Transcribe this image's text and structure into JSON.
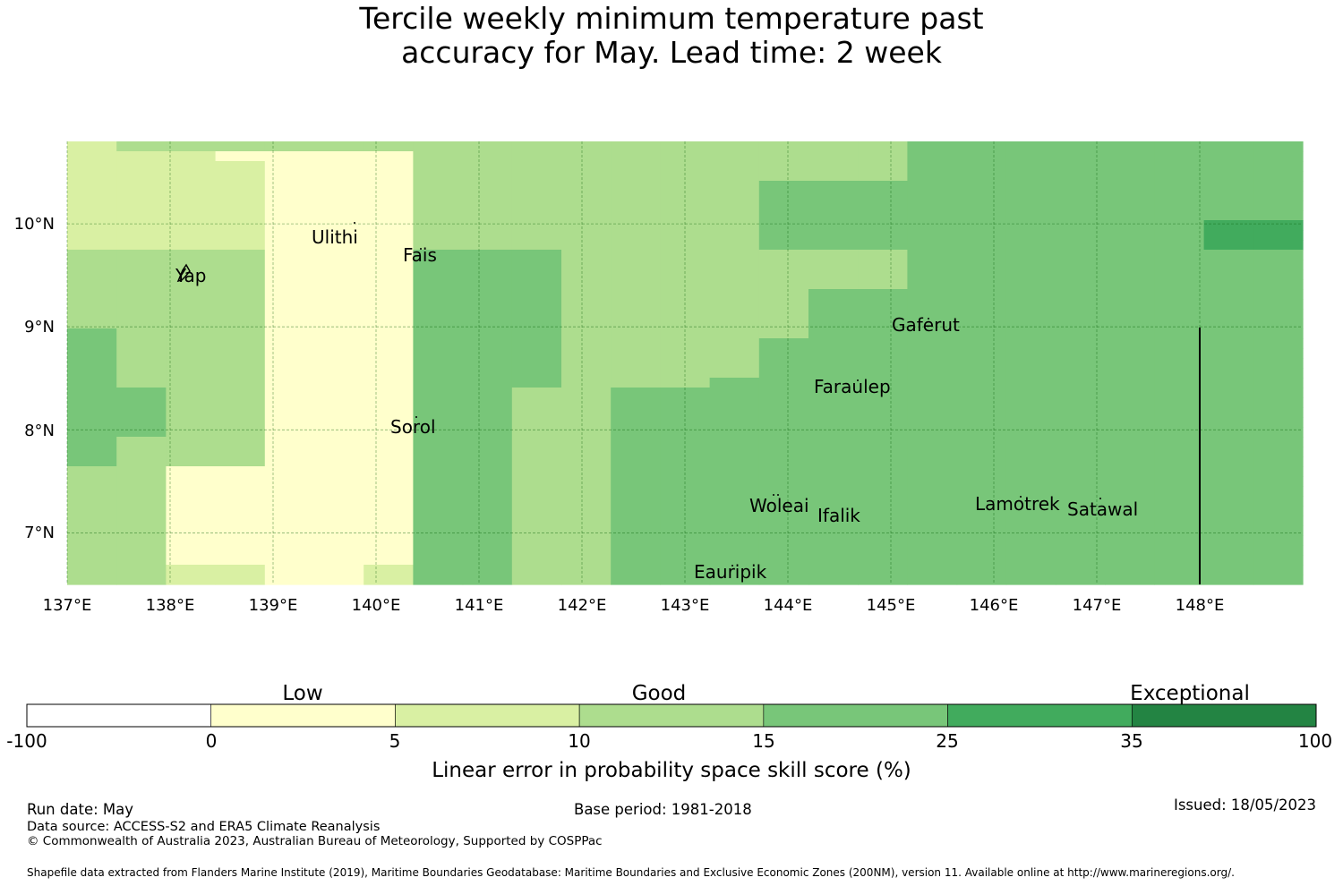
{
  "title_line1": "Tercile weekly minimum temperature past",
  "title_line2": "accuracy for May. Lead time: 2 week",
  "map": {
    "lon_range": [
      137,
      149
    ],
    "lat_range": [
      6.5,
      10.8
    ],
    "lon_ticks": [
      "137°E",
      "138°E",
      "139°E",
      "140°E",
      "141°E",
      "142°E",
      "143°E",
      "144°E",
      "145°E",
      "146°E",
      "147°E",
      "148°E"
    ],
    "lat_ticks": [
      "7°N",
      "8°N",
      "9°N",
      "10°N"
    ],
    "grid": true,
    "islands": [
      {
        "name": "Yap"
      },
      {
        "name": "Ulithi"
      },
      {
        "name": "Fais"
      },
      {
        "name": "Gaferut"
      },
      {
        "name": "Faraulep"
      },
      {
        "name": "Sorol"
      },
      {
        "name": "Woleai"
      },
      {
        "name": "Ifalik"
      },
      {
        "name": "Lamotrek"
      },
      {
        "name": "Satawal"
      },
      {
        "name": "Eauripik"
      }
    ],
    "skill_grid_category_rows_top_to_bottom": [
      "2333333333333333344444444",
      "2221111333333333344444444",
      "2222111333333333344444444",
      "2222111333333333344444444",
      "2222111333333344444444444",
      "2222111333333344444444444",
      "2222111333333344444444444",
      "2222111333333344444444444",
      "2222111333333344444444455",
      "2222111333333344444444455",
      "2222111333333344444444455",
      "3333111444333333344444444",
      "3333111444333333344444444",
      "3333111444333333344444444",
      "3333111444333333344444444",
      "3333111444333334444444444",
      "3333111444333334444444444",
      "3333111444333334444444444",
      "3333111444333334444444444",
      "4333111444333334444444444",
      "4333111444333344444444444",
      "4333111444333344444444444",
      "4333111444333344444444444",
      "4333111444333344444444444",
      "4333111444333444444444444",
      "4433111443344444444444444",
      "4433111443344444444444444",
      "4433111443344444444444444",
      "4433111443344444444444444",
      "4433111443344444444444444",
      "4333111443344444444444444",
      "4333111443344444444444444",
      "4333111443344444444444444",
      "3311111443344444444444444",
      "3311111443344444444444444",
      "3311111443344444444444444",
      "3311111443344444444444444",
      "3311111443344444444444444",
      "3311111443344444444444444",
      "3311111443344444444444444",
      "3311111443344444444444444",
      "3311111443344444444444444",
      "3311111443344444444444444",
      "3322112443344444444444444",
      "3322112443344444444444444"
    ]
  },
  "legend": {
    "category_labels": [
      "Low",
      "Good",
      "Exceptional"
    ],
    "boundaries": [
      "-100",
      "0",
      "5",
      "10",
      "15",
      "25",
      "35",
      "100"
    ],
    "colors": [
      "#ffffff",
      "#ffffcc",
      "#d9f0a3",
      "#addd8e",
      "#78c679",
      "#41ab5d",
      "#238443"
    ],
    "label": "Linear error in probability space skill score (%)"
  },
  "footer": {
    "run_date": "Run date: May",
    "base_period": "Base period: 1981-2018",
    "issued": "Issued: 18/05/2023",
    "data_source": "Data source: ACCESS-S2 and ERA5 Climate Reanalysis",
    "copyright": "© Commonwealth of Australia 2023, Australian Bureau of Meteorology, Supported by COSPPac",
    "shapefile": "Shapefile data extracted from Flanders Marine Institute (2019), Maritime Boundaries Geodatabase: Maritime Boundaries and Exclusive Economic Zones (200NM), version 11. Available online at http://www.marineregions.org/."
  }
}
